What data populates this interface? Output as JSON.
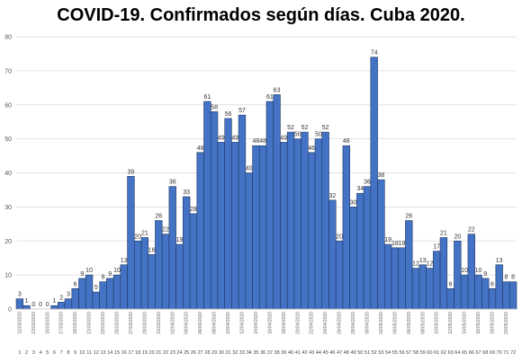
{
  "chart_data": {
    "type": "bar",
    "title": "COVID-19. Confirmados según días. Cuba 2020.",
    "xlabel": "",
    "ylabel": "",
    "ylim": [
      0,
      80
    ],
    "yticks": [
      0,
      10,
      20,
      30,
      40,
      50,
      60,
      70,
      80
    ],
    "grid": true,
    "bar_color": "#4472c4",
    "bar_edge_color": "#1f3864",
    "categories": [
      "1",
      "2",
      "3",
      "4",
      "5",
      "6",
      "7",
      "8",
      "9",
      "10",
      "11",
      "12",
      "13",
      "14",
      "15",
      "16",
      "17",
      "18",
      "19",
      "20",
      "21",
      "22",
      "23",
      "24",
      "25",
      "26",
      "27",
      "28",
      "29",
      "30",
      "31",
      "32",
      "33",
      "34",
      "35",
      "36",
      "37",
      "38",
      "39",
      "40",
      "41",
      "42",
      "43",
      "44",
      "45",
      "46",
      "47",
      "48",
      "49",
      "50",
      "51",
      "52",
      "53",
      "54",
      "55",
      "56",
      "57",
      "58",
      "59",
      "60",
      "61",
      "62",
      "63",
      "64",
      "65",
      "66",
      "67",
      "68",
      "69",
      "70",
      "71",
      "72"
    ],
    "dates": [
      "11/03/2020",
      "",
      "13/03/2020",
      "",
      "15/03/2020",
      "",
      "17/03/2020",
      "",
      "19/03/2020",
      "",
      "21/03/2020",
      "",
      "23/03/2020",
      "",
      "25/03/2020",
      "",
      "27/03/2020",
      "",
      "29/03/2020",
      "",
      "31/03/2020",
      "",
      "02/04/2020",
      "",
      "04/04/2020",
      "",
      "06/04/2020",
      "",
      "08/04/2020",
      "",
      "10/04/2020",
      "",
      "12/04/2020",
      "",
      "14/04/2020",
      "",
      "16/04/2020",
      "",
      "18/04/2020",
      "",
      "20/04/2020",
      "",
      "22/04/2020",
      "",
      "24/04/2020",
      "",
      "26/04/2020",
      "",
      "28/04/2020",
      "",
      "30/04/2020",
      "",
      "02/05/2020",
      "",
      "04/05/2020",
      "",
      "06/05/2020",
      "",
      "08/05/2020",
      "",
      "10/05/2020",
      "",
      "12/05/2020",
      "",
      "14/05/2020",
      "",
      "16/05/2020",
      "",
      "18/05/2020",
      "",
      "20/05/2020",
      ""
    ],
    "values": [
      3,
      1,
      0,
      0,
      0,
      1,
      2,
      3,
      6,
      9,
      10,
      5,
      8,
      9,
      10,
      13,
      39,
      20,
      21,
      16,
      26,
      22,
      36,
      19,
      33,
      28,
      46,
      61,
      58,
      49,
      56,
      49,
      57,
      40,
      48,
      48,
      61,
      63,
      49,
      52,
      50,
      52,
      46,
      50,
      52,
      32,
      20,
      48,
      30,
      34,
      36,
      74,
      38,
      19,
      18,
      18,
      26,
      12,
      13,
      12,
      17,
      21,
      6,
      20,
      10,
      22,
      10,
      9,
      6,
      13,
      8,
      8
    ]
  }
}
